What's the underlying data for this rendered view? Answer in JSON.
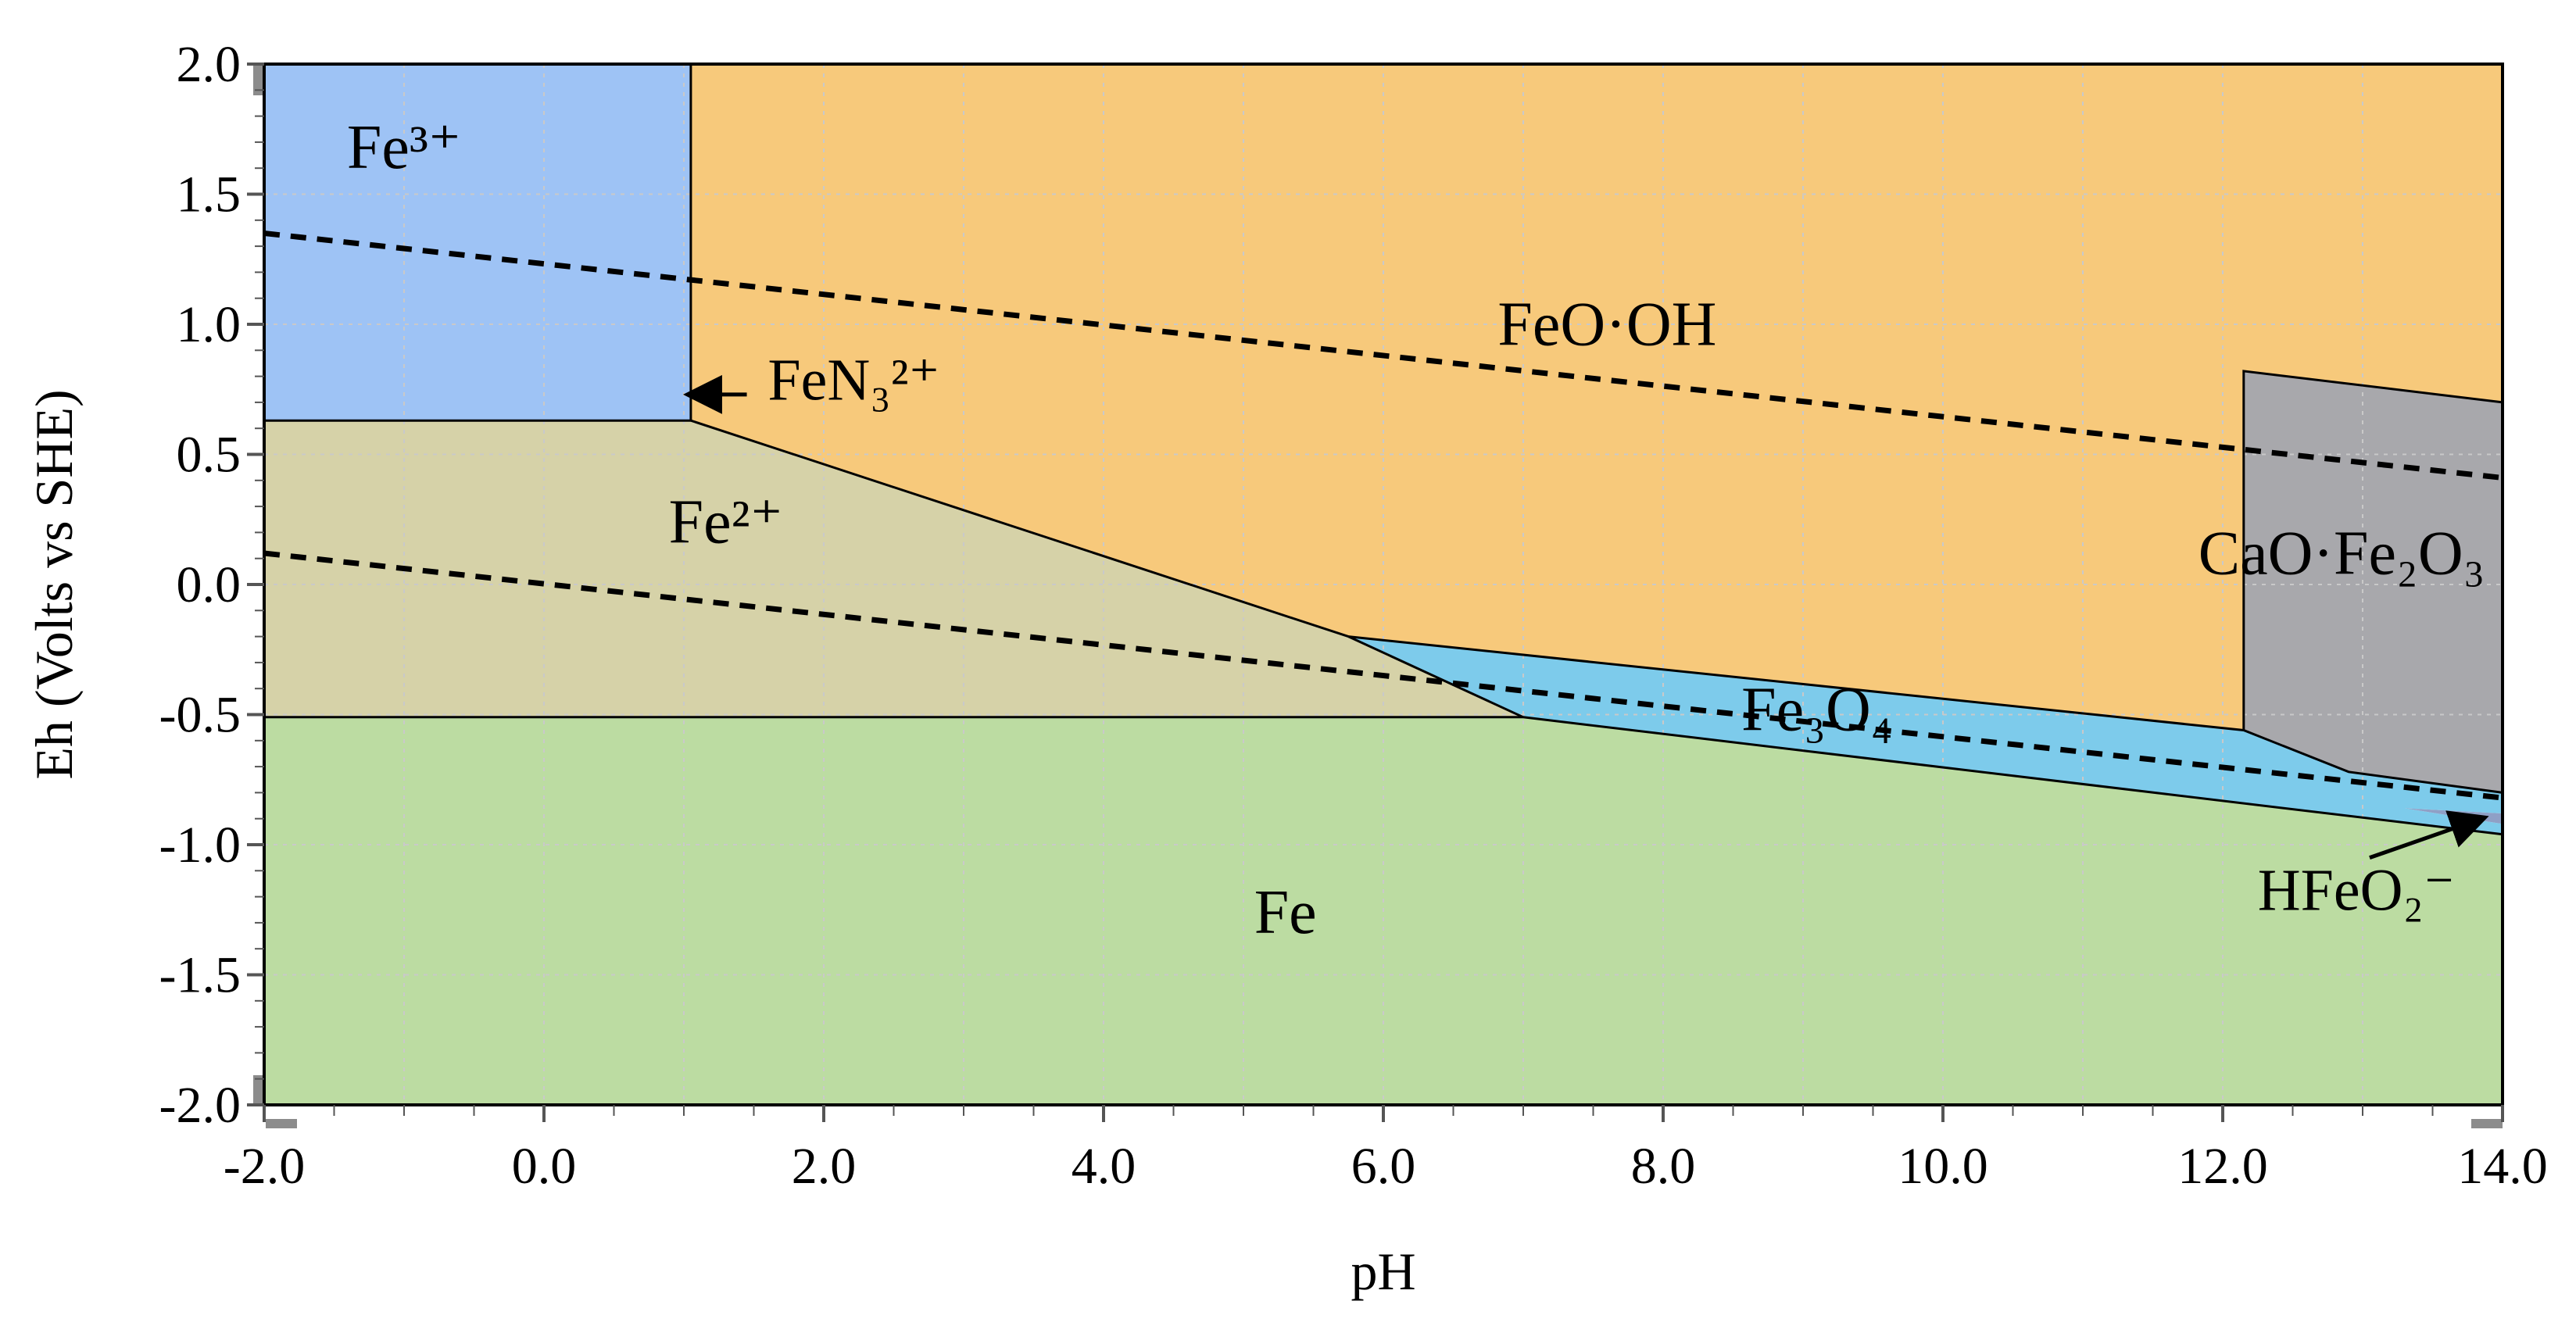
{
  "chart_data": {
    "type": "area",
    "title": "",
    "xlabel": "pH",
    "ylabel": "Eh (Volts vs SHE)",
    "xlim": [
      -2.0,
      14.0
    ],
    "ylim": [
      -2.0,
      2.0
    ],
    "grid": true,
    "x_ticks": [
      "-2.0",
      "0.0",
      "2.0",
      "4.0",
      "6.0",
      "8.0",
      "10.0",
      "12.0",
      "14.0"
    ],
    "y_ticks": [
      "2.0",
      "1.5",
      "1.0",
      "0.5",
      "0.0",
      "-0.5",
      "-1.0",
      "-1.5",
      "-2.0"
    ],
    "regions": [
      {
        "name": "Fe",
        "label": "Fe",
        "color": "#BCDCA2",
        "points": [
          [
            -2.0,
            -2.0
          ],
          [
            14.0,
            -2.0
          ],
          [
            14.0,
            -0.96
          ],
          [
            7.0,
            -0.51
          ],
          [
            -2.0,
            -0.51
          ]
        ]
      },
      {
        "name": "Fe2+",
        "label": "Fe²⁺",
        "color": "#D6D2A8",
        "points": [
          [
            -2.0,
            -0.51
          ],
          [
            7.0,
            -0.51
          ],
          [
            5.75,
            -0.2
          ],
          [
            1.05,
            0.63
          ],
          [
            -2.0,
            0.63
          ]
        ]
      },
      {
        "name": "Fe3+",
        "label": "Fe³⁺",
        "color": "#9EC3F5",
        "points": [
          [
            -2.0,
            0.63
          ],
          [
            1.05,
            0.63
          ],
          [
            1.05,
            2.0
          ],
          [
            -2.0,
            2.0
          ]
        ]
      },
      {
        "name": "FeOOH",
        "label": "FeO·OH",
        "color": "#F7C97B",
        "points": [
          [
            1.05,
            2.0
          ],
          [
            14.0,
            2.0
          ],
          [
            14.0,
            0.7
          ],
          [
            12.15,
            0.82
          ],
          [
            12.15,
            -0.56
          ],
          [
            5.75,
            -0.2
          ],
          [
            1.05,
            0.63
          ]
        ]
      },
      {
        "name": "Fe3O4",
        "label": "Fe₃O₄",
        "color": "#7DCBEB",
        "points": [
          [
            5.75,
            -0.2
          ],
          [
            12.15,
            -0.56
          ],
          [
            12.9,
            -0.72
          ],
          [
            14.0,
            -0.8
          ],
          [
            14.0,
            -0.88
          ],
          [
            13.3,
            -0.86
          ],
          [
            14.0,
            -0.92
          ],
          [
            14.0,
            -0.96
          ],
          [
            7.0,
            -0.51
          ]
        ]
      },
      {
        "name": "CaOFe2O3",
        "label": "CaO·Fe₂O₃",
        "color": "#A8A8AC",
        "points": [
          [
            12.15,
            0.82
          ],
          [
            14.0,
            0.7
          ],
          [
            14.0,
            -0.8
          ],
          [
            12.9,
            -0.72
          ],
          [
            12.15,
            -0.56
          ]
        ]
      },
      {
        "name": "HFeO2-",
        "label": "HFeO₂⁻",
        "color": "#8FA0C6",
        "points": [
          [
            13.3,
            -0.86
          ],
          [
            14.0,
            -0.88
          ],
          [
            14.0,
            -0.92
          ]
        ]
      }
    ],
    "region_boundaries": [
      [
        [
          1.05,
          2.0
        ],
        [
          1.05,
          0.63
        ]
      ],
      [
        [
          -2.0,
          0.63
        ],
        [
          1.05,
          0.63
        ]
      ],
      [
        [
          1.05,
          0.63
        ],
        [
          5.75,
          -0.2
        ]
      ],
      [
        [
          -2.0,
          -0.51
        ],
        [
          7.0,
          -0.51
        ]
      ],
      [
        [
          5.75,
          -0.2
        ],
        [
          7.0,
          -0.51
        ]
      ],
      [
        [
          5.75,
          -0.2
        ],
        [
          12.15,
          -0.56
        ],
        [
          12.9,
          -0.72
        ],
        [
          14.0,
          -0.8
        ]
      ],
      [
        [
          7.0,
          -0.51
        ],
        [
          14.0,
          -0.96
        ]
      ],
      [
        [
          12.15,
          -0.56
        ],
        [
          12.15,
          0.82
        ],
        [
          14.0,
          0.7
        ]
      ]
    ],
    "water_lines": [
      {
        "name": "O2/H2O",
        "style": "dashed",
        "points": [
          [
            -2.0,
            1.35
          ],
          [
            14.0,
            0.41
          ]
        ]
      },
      {
        "name": "H2O/H2",
        "style": "dashed",
        "points": [
          [
            -2.0,
            0.12
          ],
          [
            14.0,
            -0.82
          ]
        ]
      }
    ],
    "region_labels": [
      {
        "text": "Fe³⁺",
        "x": -1.0,
        "y": 1.6
      },
      {
        "text": "FeO·OH",
        "x": 7.6,
        "y": 0.92
      },
      {
        "text": "Fe²⁺",
        "x": 1.3,
        "y": 0.16
      },
      {
        "text": "CaO·Fe₂O₃",
        "x": 12.85,
        "y": 0.04
      },
      {
        "text": "Fe₃O₄",
        "x": 9.1,
        "y": -0.56
      },
      {
        "text": "Fe",
        "x": 5.3,
        "y": -1.34
      }
    ],
    "annotations": [
      {
        "text": "FeN₃²⁺",
        "x": 1.6,
        "y": 0.71,
        "arrow_from": [
          1.45,
          0.73
        ],
        "arrow_to": [
          1.05,
          0.73
        ]
      },
      {
        "text": "HFeO₂⁻",
        "x": 12.25,
        "y": -1.25,
        "arrow_from": [
          13.05,
          -1.05
        ],
        "arrow_to": [
          13.85,
          -0.9
        ]
      }
    ]
  }
}
